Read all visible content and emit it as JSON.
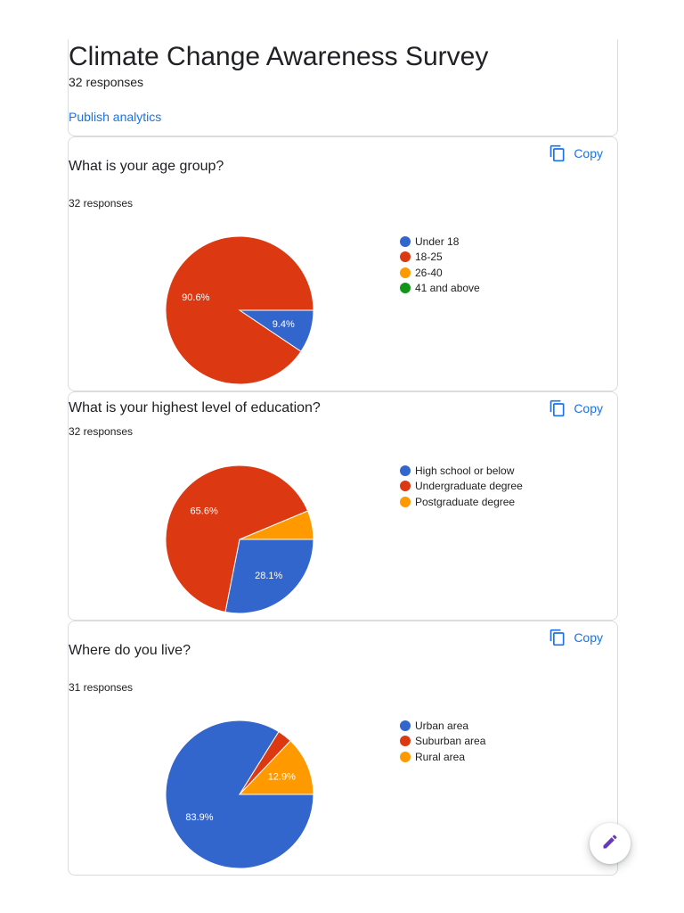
{
  "header": {
    "title": "Climate Change Awareness Survey",
    "responses": "32 responses",
    "publish_label": "Publish analytics"
  },
  "copy_label": "Copy",
  "colors": {
    "blue": "#3366cc",
    "red": "#dc3912",
    "orange": "#ff9900",
    "green": "#109618",
    "link": "#1a73e8"
  },
  "icons": {
    "copy": "copy-icon",
    "edit": "pencil-icon"
  },
  "questions": [
    {
      "title": "What is your age group?",
      "responses": "32 responses",
      "chart_data": {
        "type": "pie",
        "categories": [
          "Under 18",
          "18-25",
          "26-40",
          "41 and above"
        ],
        "values": [
          9.4,
          90.6,
          0,
          0
        ],
        "labels": [
          "9.4%",
          "90.6%",
          "",
          ""
        ],
        "colors": [
          "#3366cc",
          "#dc3912",
          "#ff9900",
          "#109618"
        ],
        "legend": "right"
      }
    },
    {
      "title": "What is your highest level of education?",
      "responses": "32 responses",
      "chart_data": {
        "type": "pie",
        "categories": [
          "High school or below",
          "Undergraduate degree",
          "Postgraduate degree"
        ],
        "values": [
          28.1,
          65.6,
          6.3
        ],
        "labels": [
          "28.1%",
          "65.6%",
          ""
        ],
        "colors": [
          "#3366cc",
          "#dc3912",
          "#ff9900"
        ],
        "legend": "right"
      }
    },
    {
      "title": "Where do you live?",
      "responses": "31 responses",
      "chart_data": {
        "type": "pie",
        "categories": [
          "Urban area",
          "Suburban area",
          "Rural area"
        ],
        "values": [
          83.9,
          3.2,
          12.9
        ],
        "labels": [
          "83.9%",
          "",
          "12.9%"
        ],
        "colors": [
          "#3366cc",
          "#dc3912",
          "#ff9900"
        ],
        "legend": "right"
      }
    }
  ]
}
